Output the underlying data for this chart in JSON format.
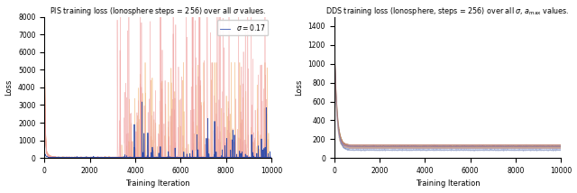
{
  "left_title": "PIS training loss (Ionosphere steps = 256) over all $\\sigma$ values.",
  "right_title": "DDS training loss (Ionosphere, steps = 256) over all $\\sigma$, $a_{\\mathrm{max}}$ values.",
  "xlabel": "Training Iteration",
  "ylabel": "Loss",
  "left_xlim": [
    0,
    10000
  ],
  "left_ylim": [
    0,
    8000
  ],
  "right_xlim": [
    0,
    10000
  ],
  "right_ylim": [
    0,
    1500
  ],
  "legend_label": "$\\sigma = 0.17$",
  "n_iterations": 10000,
  "bg_color": "#ffffff",
  "orange_color": "#f5c08a",
  "pink_color": "#f0a0a0",
  "blue_color": "#2244aa",
  "right_colors": [
    "#6688cc",
    "#8899cc",
    "#aabbcc",
    "#cc9988",
    "#bb8877",
    "#aa9966",
    "#9977aa",
    "#ccaa99",
    "#7788bb",
    "#bb7766"
  ]
}
